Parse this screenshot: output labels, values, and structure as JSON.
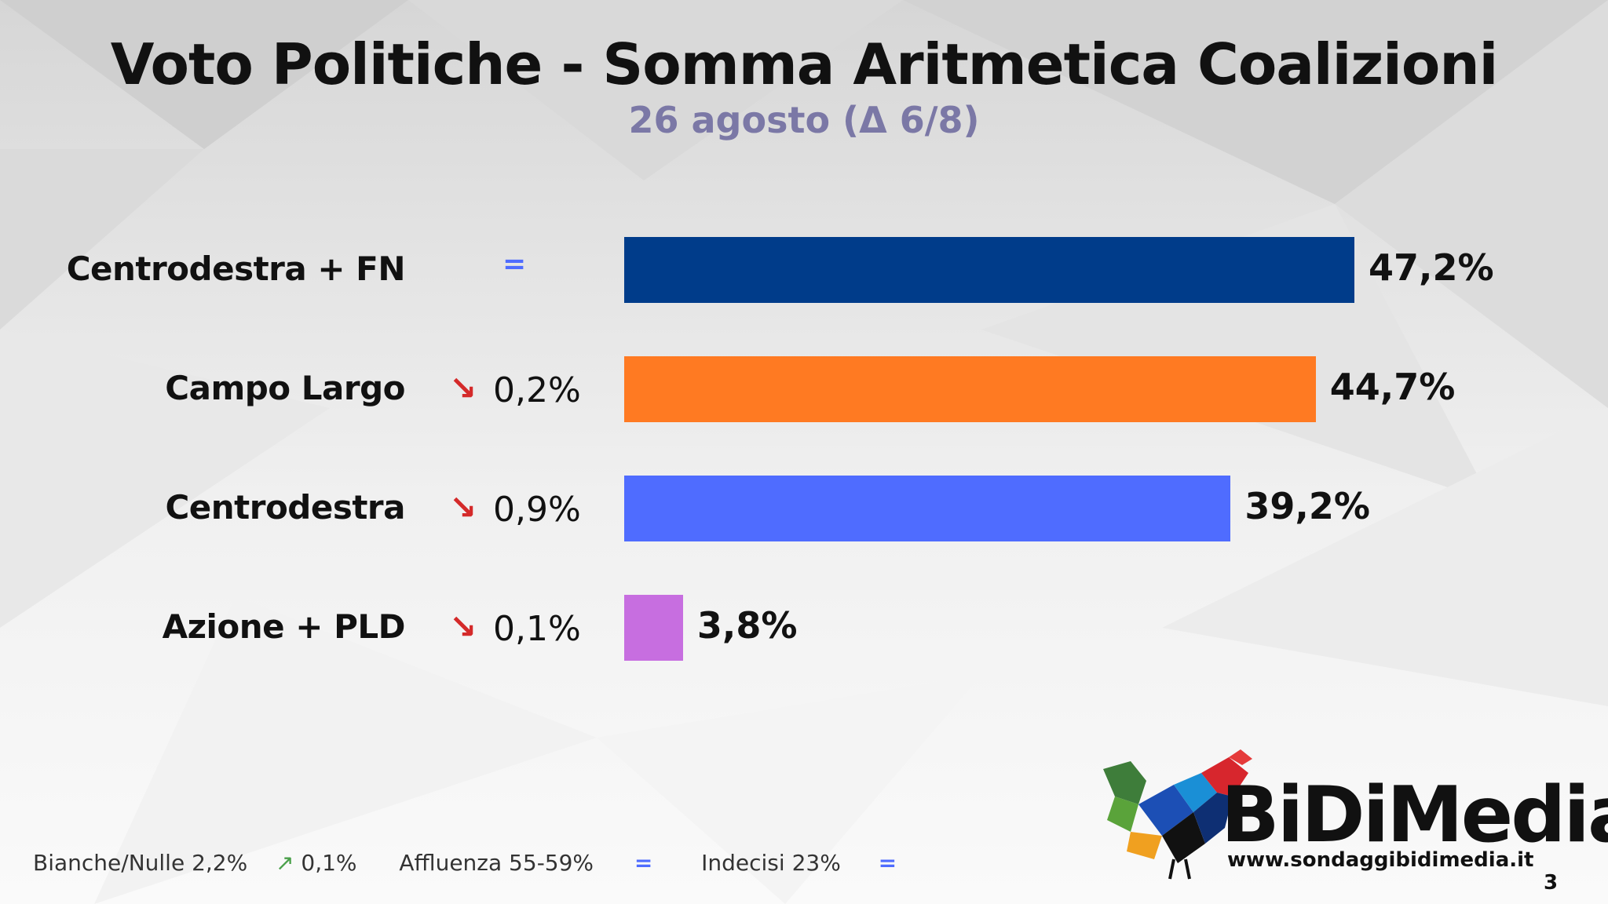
{
  "title": "Voto Politiche - Somma Aritmetica Coalizioni",
  "subtitle": "26 agosto (Δ 6/8)",
  "colors": {
    "down": "#d42a2a",
    "up": "#4aa04a",
    "equal": "#4f6cff"
  },
  "chart_data": {
    "type": "bar",
    "orientation": "horizontal",
    "xlim": [
      0,
      50
    ],
    "categories": [
      "Centrodestra + FN",
      "Campo Largo",
      "Centrodestra",
      "Azione + PLD"
    ],
    "values": [
      47.2,
      44.7,
      39.2,
      3.8
    ],
    "value_labels": [
      "47,2%",
      "44,7%",
      "39,2%",
      "3,8%"
    ],
    "colors": [
      "#003c8a",
      "#ff7a22",
      "#4f6cff",
      "#c76ee0"
    ],
    "change_direction": [
      "equal",
      "down",
      "down",
      "down"
    ],
    "change_symbols": [
      "=",
      "↘",
      "↘",
      "↘"
    ],
    "change_labels": [
      "",
      "0,2%",
      "0,9%",
      "0,1%"
    ]
  },
  "footer": {
    "bianche_label": "Bianche/Nulle 2,2%",
    "bianche_arrow": "↗",
    "bianche_change": "0,1%",
    "affluenza_label": "Affluenza 55-59%",
    "affluenza_symbol": "=",
    "indecisi_label": "Indecisi 23%",
    "indecisi_symbol": "="
  },
  "logo": {
    "name": "BiDiMedia",
    "url": "www.sondaggibidimedia.it"
  },
  "page_number": "3"
}
